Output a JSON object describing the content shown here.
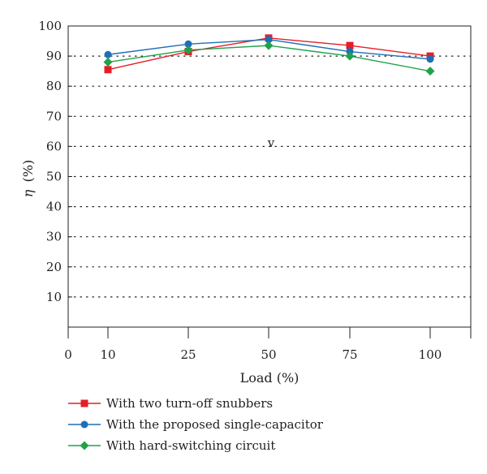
{
  "chart_data": {
    "type": "line",
    "xlabel": "Load (%)",
    "ylabel_symbol": "η",
    "ylabel_unit": "(%)",
    "ylim": [
      0,
      100
    ],
    "yticks": [
      10,
      20,
      30,
      40,
      50,
      60,
      70,
      80,
      90,
      100
    ],
    "x_origin_label": "0",
    "categories": [
      "10",
      "25",
      "50",
      "75",
      "100"
    ],
    "grid": "horizontal dotted",
    "legend_position": "bottom-left",
    "annotation": "v",
    "series": [
      {
        "name": "With two turn-off snubbers",
        "color": "#e41e26",
        "marker": "square",
        "values": [
          85.5,
          91.5,
          96.0,
          93.5,
          90.0
        ]
      },
      {
        "name": "With the proposed single-capacitor",
        "color": "#1f6fb5",
        "marker": "circle",
        "values": [
          90.5,
          94.0,
          95.5,
          91.5,
          89.0
        ]
      },
      {
        "name": "With hard-switching circuit",
        "color": "#1fa34a",
        "marker": "diamond",
        "values": [
          88.0,
          92.0,
          93.5,
          90.0,
          85.0
        ]
      }
    ]
  }
}
